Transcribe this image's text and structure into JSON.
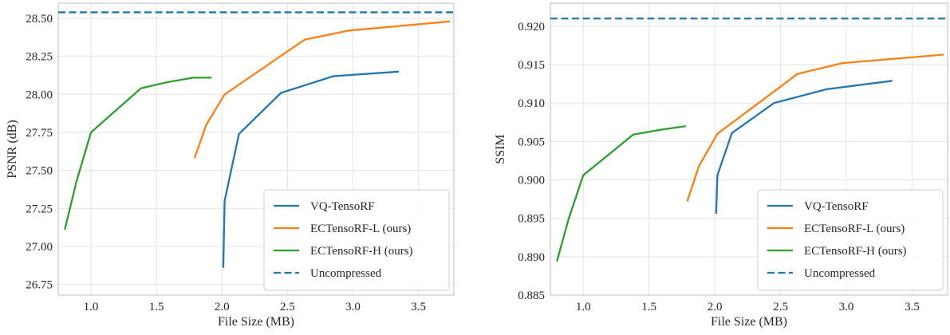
{
  "colors": {
    "vq": "#1f77b4",
    "ecl": "#ff7f0e",
    "ech": "#2ca02c",
    "uncompressed": "#1f77b4"
  },
  "legend_position": "lower-right",
  "chart_data": [
    {
      "type": "line",
      "xlabel": "File Size (MB)",
      "ylabel": "PSNR (dB)",
      "xlim": [
        0.75,
        3.77
      ],
      "ylim": [
        26.68,
        28.6
      ],
      "xticks": [
        1.0,
        1.5,
        2.0,
        2.5,
        3.0,
        3.5
      ],
      "xtick_labels": [
        "1.0",
        "1.5",
        "2.0",
        "2.5",
        "3.0",
        "3.5"
      ],
      "yticks": [
        26.75,
        27.0,
        27.25,
        27.5,
        27.75,
        28.0,
        28.25,
        28.5
      ],
      "ytick_labels": [
        "26.75",
        "27.00",
        "27.25",
        "27.50",
        "27.75",
        "28.00",
        "28.25",
        "28.50"
      ],
      "grid": true,
      "series": [
        {
          "name": "VQ-TensoRF",
          "color_key": "vq",
          "style": "solid",
          "x": [
            2.01,
            2.02,
            2.13,
            2.45,
            2.85,
            3.35
          ],
          "y": [
            26.86,
            27.3,
            27.74,
            28.01,
            28.12,
            28.15
          ]
        },
        {
          "name": "ECTensoRF-L (ours)",
          "color_key": "ecl",
          "style": "solid",
          "x": [
            1.79,
            1.88,
            2.02,
            2.63,
            2.97,
            3.74
          ],
          "y": [
            27.58,
            27.8,
            28.0,
            28.36,
            28.42,
            28.48
          ]
        },
        {
          "name": "ECTensoRF-H (ours)",
          "color_key": "ech",
          "style": "solid",
          "x": [
            0.8,
            0.89,
            1.0,
            1.38,
            1.58,
            1.78,
            1.92
          ],
          "y": [
            27.11,
            27.43,
            27.75,
            28.04,
            28.08,
            28.11,
            28.11
          ]
        },
        {
          "name": "Uncompressed",
          "color_key": "uncompressed",
          "style": "dashed",
          "hline": 28.54
        }
      ]
    },
    {
      "type": "line",
      "xlabel": "File Size (MB)",
      "ylabel": "SSIM",
      "xlim": [
        0.75,
        3.77
      ],
      "ylim": [
        0.885,
        0.923
      ],
      "xticks": [
        1.0,
        1.5,
        2.0,
        2.5,
        3.0,
        3.5
      ],
      "xtick_labels": [
        "1.0",
        "1.5",
        "2.0",
        "2.5",
        "3.0",
        "3.5"
      ],
      "yticks": [
        0.885,
        0.89,
        0.895,
        0.9,
        0.905,
        0.91,
        0.915,
        0.92
      ],
      "ytick_labels": [
        "0.885",
        "0.890",
        "0.895",
        "0.900",
        "0.905",
        "0.910",
        "0.915",
        "0.920"
      ],
      "grid": true,
      "series": [
        {
          "name": "VQ-TensoRF",
          "color_key": "vq",
          "style": "solid",
          "x": [
            2.01,
            2.02,
            2.13,
            2.45,
            2.85,
            3.35
          ],
          "y": [
            0.8956,
            0.9006,
            0.9061,
            0.91,
            0.9118,
            0.9129
          ]
        },
        {
          "name": "ECTensoRF-L (ours)",
          "color_key": "ecl",
          "style": "solid",
          "x": [
            1.79,
            1.88,
            2.02,
            2.63,
            2.97,
            3.74
          ],
          "y": [
            0.8972,
            0.9018,
            0.906,
            0.9138,
            0.9152,
            0.9163
          ]
        },
        {
          "name": "ECTensoRF-H (ours)",
          "color_key": "ech",
          "style": "solid",
          "x": [
            0.8,
            0.89,
            1.0,
            1.38,
            1.58,
            1.78
          ],
          "y": [
            0.8894,
            0.895,
            0.9006,
            0.9059,
            0.9065,
            0.907
          ]
        },
        {
          "name": "Uncompressed",
          "color_key": "uncompressed",
          "style": "dashed",
          "hline": 0.921
        }
      ]
    }
  ]
}
